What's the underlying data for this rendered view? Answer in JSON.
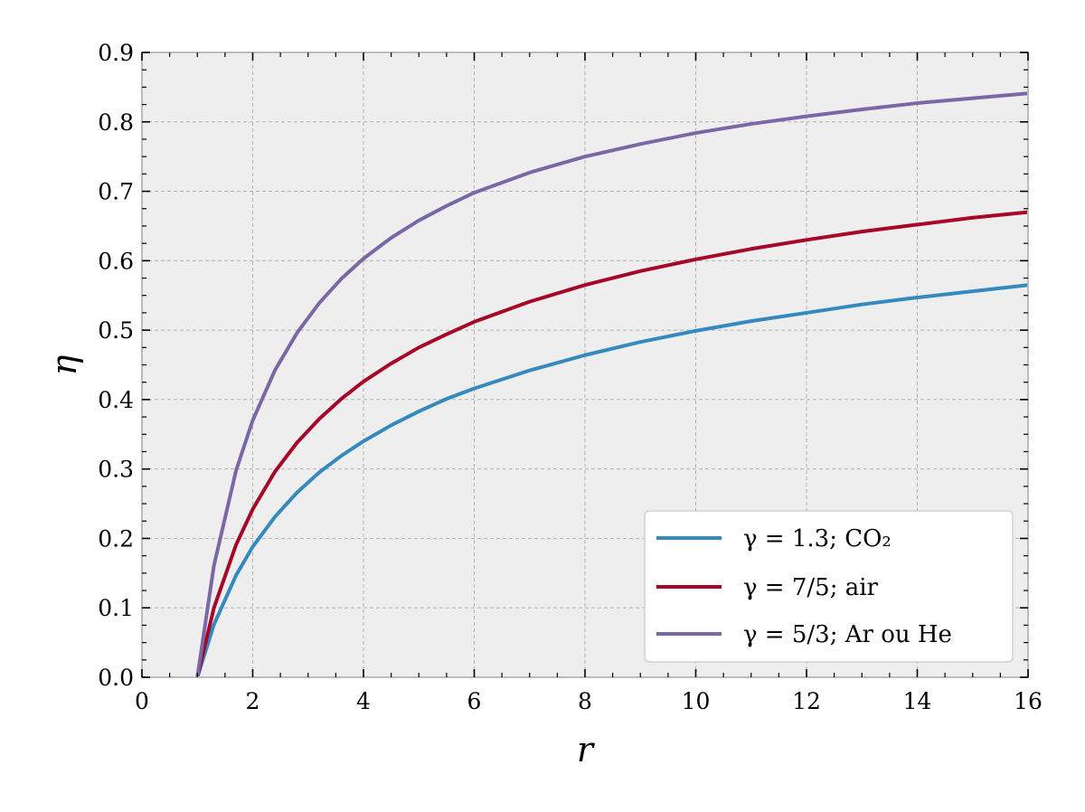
{
  "chart_data": {
    "type": "line",
    "title": "",
    "xlabel": "r",
    "ylabel": "η",
    "xlim": [
      0,
      16
    ],
    "ylim": [
      0,
      0.9
    ],
    "x_ticks": [
      "0",
      "2",
      "4",
      "6",
      "8",
      "10",
      "12",
      "14",
      "16"
    ],
    "y_ticks": [
      "0.0",
      "0.1",
      "0.2",
      "0.3",
      "0.4",
      "0.5",
      "0.6",
      "0.7",
      "0.8",
      "0.9"
    ],
    "grid": true,
    "legend_position": "lower-right",
    "x": [
      1.0,
      1.3,
      1.7,
      2.0,
      2.4,
      2.8,
      3.2,
      3.6,
      4.0,
      4.5,
      5.0,
      5.5,
      6.0,
      7.0,
      8.0,
      9.0,
      10.0,
      11.0,
      12.0,
      13.0,
      14.0,
      15.0,
      16.0
    ],
    "series": [
      {
        "name": "γ = 1.3; CO₂",
        "color": "#348ABD",
        "values": [
          0.0,
          0.076,
          0.147,
          0.188,
          0.231,
          0.266,
          0.295,
          0.319,
          0.34,
          0.363,
          0.383,
          0.401,
          0.416,
          0.442,
          0.464,
          0.483,
          0.499,
          0.513,
          0.525,
          0.537,
          0.547,
          0.556,
          0.565
        ]
      },
      {
        "name": "γ = 7/5; air",
        "color": "#A60628",
        "values": [
          0.0,
          0.1,
          0.191,
          0.242,
          0.296,
          0.338,
          0.372,
          0.401,
          0.426,
          0.452,
          0.475,
          0.494,
          0.512,
          0.541,
          0.565,
          0.585,
          0.602,
          0.617,
          0.63,
          0.642,
          0.652,
          0.662,
          0.67
        ]
      },
      {
        "name": "γ = 5/3; Ar ou He",
        "color": "#7A68A6",
        "values": [
          0.0,
          0.161,
          0.298,
          0.37,
          0.442,
          0.496,
          0.539,
          0.574,
          0.603,
          0.633,
          0.658,
          0.679,
          0.698,
          0.727,
          0.75,
          0.768,
          0.784,
          0.797,
          0.808,
          0.818,
          0.827,
          0.834,
          0.841
        ]
      }
    ]
  }
}
